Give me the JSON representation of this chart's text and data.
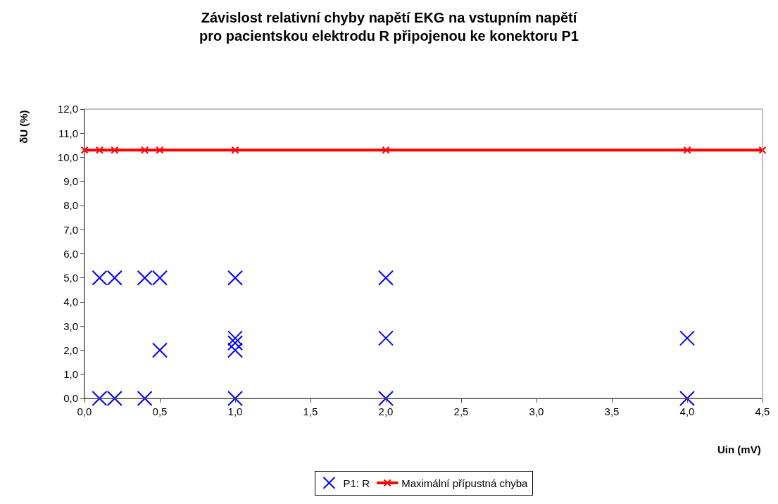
{
  "chart_data": {
    "type": "scatter",
    "title": "Závislost relativní chyby napětí EKG na vstupním napětí pro pacientskou elektrodu R připojenou ke konektoru P1",
    "xlabel": "Uin (mV)",
    "ylabel": "δU (%)",
    "series": [
      {
        "name": "P1: R",
        "color": "#0000ff",
        "marker": "cross",
        "x": [
          0.1,
          0.2,
          0.4,
          0.5,
          1.0,
          2.0,
          0.1,
          0.2,
          0.4,
          1.0,
          2.0,
          4.0,
          0.5,
          1.0,
          1.0,
          1.0,
          2.0,
          4.0
        ],
        "values": [
          5.0,
          5.0,
          5.0,
          5.0,
          5.0,
          5.0,
          0.0,
          0.0,
          0.0,
          0.0,
          0.0,
          0.0,
          2.0,
          2.0,
          2.3,
          2.5,
          2.5,
          2.5
        ]
      },
      {
        "name": "Maximální přípustná chyba",
        "type": "line",
        "color": "#ff0000",
        "marker": "cross",
        "x": [
          0.0,
          0.1,
          0.2,
          0.4,
          0.5,
          1.0,
          2.0,
          4.0,
          4.5
        ],
        "values": [
          10.3,
          10.3,
          10.3,
          10.3,
          10.3,
          10.3,
          10.3,
          10.3,
          10.3
        ]
      }
    ],
    "xlim": [
      0,
      4.5
    ],
    "xticks": [
      {
        "value": 0,
        "label": "0,0"
      },
      {
        "value": 0.5,
        "label": "0,5"
      },
      {
        "value": 1,
        "label": "1,0"
      },
      {
        "value": 1.5,
        "label": "1,5"
      },
      {
        "value": 2,
        "label": "2,0"
      },
      {
        "value": 2.5,
        "label": "2,5"
      },
      {
        "value": 3,
        "label": "3,0"
      },
      {
        "value": 3.5,
        "label": "3,5"
      },
      {
        "value": 4,
        "label": "4,0"
      },
      {
        "value": 4.5,
        "label": "4,5"
      }
    ],
    "ylim": [
      0,
      12
    ],
    "yticks": [
      {
        "value": 0,
        "label": "0,0"
      },
      {
        "value": 1,
        "label": "1,0"
      },
      {
        "value": 2,
        "label": "2,0"
      },
      {
        "value": 3,
        "label": "3,0"
      },
      {
        "value": 4,
        "label": "4,0"
      },
      {
        "value": 5,
        "label": "5,0"
      },
      {
        "value": 6,
        "label": "6,0"
      },
      {
        "value": 7,
        "label": "7,0"
      },
      {
        "value": 8,
        "label": "8,0"
      },
      {
        "value": 9,
        "label": "9,0"
      },
      {
        "value": 10,
        "label": "10,0"
      },
      {
        "value": 11,
        "label": "11,0"
      },
      {
        "value": 12,
        "label": "12,0"
      }
    ],
    "grid": false,
    "legend": "bottom"
  }
}
